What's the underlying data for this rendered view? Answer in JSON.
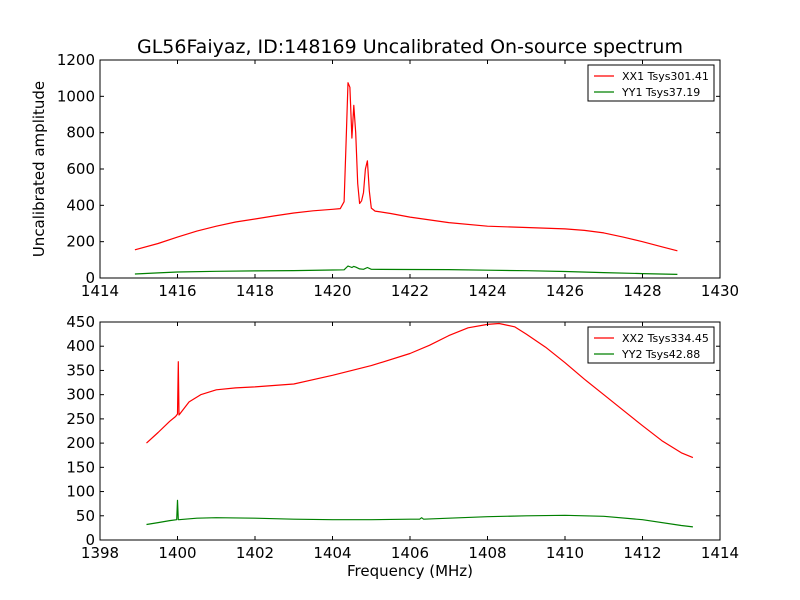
{
  "title": "GL56Faiyaz, ID:148169 Uncalibrated On-source spectrum",
  "colors": {
    "xx": "#ff0000",
    "yy": "#008000"
  },
  "chart_data": [
    {
      "type": "line",
      "ylabel": "Uncalibrated amplitude",
      "xlabel": "",
      "xlim": [
        1414,
        1430
      ],
      "ylim": [
        0,
        1200
      ],
      "xticks": [
        1414,
        1416,
        1418,
        1420,
        1422,
        1424,
        1426,
        1428,
        1430
      ],
      "yticks": [
        0,
        200,
        400,
        600,
        800,
        1000,
        1200
      ],
      "legend_position": "top-right",
      "series": [
        {
          "name": "XX1 Tsys301.41",
          "color": "#ff0000",
          "x": [
            1414.9,
            1415.5,
            1416,
            1416.5,
            1417,
            1417.5,
            1418,
            1418.5,
            1419,
            1419.5,
            1420,
            1420.2,
            1420.3,
            1420.35,
            1420.4,
            1420.45,
            1420.5,
            1420.55,
            1420.6,
            1420.65,
            1420.7,
            1420.75,
            1420.8,
            1420.85,
            1420.9,
            1420.95,
            1421,
            1421.1,
            1421.5,
            1422,
            1423,
            1424,
            1425,
            1426,
            1426.5,
            1427,
            1427.5,
            1428,
            1428.5,
            1428.9
          ],
          "y": [
            155,
            190,
            225,
            258,
            285,
            308,
            325,
            342,
            358,
            370,
            378,
            382,
            420,
            750,
            1075,
            1050,
            770,
            950,
            800,
            520,
            410,
            425,
            470,
            600,
            645,
            480,
            385,
            368,
            355,
            335,
            305,
            285,
            278,
            270,
            262,
            248,
            225,
            200,
            172,
            150
          ]
        },
        {
          "name": "YY1 Tsys37.19",
          "color": "#008000",
          "x": [
            1414.9,
            1415.5,
            1416,
            1417,
            1418,
            1419,
            1420,
            1420.3,
            1420.4,
            1420.5,
            1420.55,
            1420.6,
            1420.7,
            1420.8,
            1420.9,
            1421,
            1422,
            1423,
            1424,
            1425,
            1426,
            1427,
            1428,
            1428.9
          ],
          "y": [
            22,
            28,
            33,
            37,
            39,
            41,
            44,
            45,
            66,
            58,
            64,
            60,
            50,
            48,
            58,
            48,
            47,
            46,
            43,
            40,
            36,
            30,
            24,
            20
          ]
        }
      ]
    },
    {
      "type": "line",
      "ylabel": "",
      "xlabel": "Frequency (MHz)",
      "xlim": [
        1398,
        1414
      ],
      "ylim": [
        0,
        450
      ],
      "xticks": [
        1398,
        1400,
        1402,
        1404,
        1406,
        1408,
        1410,
        1412,
        1414
      ],
      "yticks": [
        0,
        50,
        100,
        150,
        200,
        250,
        300,
        350,
        400,
        450
      ],
      "legend_position": "top-right",
      "series": [
        {
          "name": "XX2 Tsys334.45",
          "color": "#ff0000",
          "x": [
            1399.2,
            1399.5,
            1399.8,
            1399.95,
            1400.0,
            1400.02,
            1400.04,
            1400.3,
            1400.6,
            1401.0,
            1401.5,
            1402,
            1403,
            1404,
            1405,
            1406,
            1406.5,
            1407,
            1407.5,
            1408,
            1408.3,
            1408.7,
            1409,
            1409.5,
            1410,
            1410.5,
            1411,
            1411.5,
            1412,
            1412.5,
            1413,
            1413.3
          ],
          "y": [
            200,
            222,
            245,
            255,
            260,
            368,
            258,
            285,
            300,
            310,
            314,
            316,
            322,
            340,
            360,
            385,
            402,
            422,
            438,
            445,
            447,
            440,
            425,
            398,
            366,
            332,
            300,
            268,
            236,
            205,
            180,
            170
          ]
        },
        {
          "name": "YY2 Tsys42.88",
          "color": "#008000",
          "x": [
            1399.2,
            1399.5,
            1399.8,
            1399.98,
            1400.0,
            1400.02,
            1400.04,
            1400.5,
            1401,
            1402,
            1403,
            1404,
            1405,
            1406,
            1406.25,
            1406.3,
            1406.35,
            1407,
            1408,
            1409,
            1410,
            1411,
            1412,
            1413,
            1413.3
          ],
          "y": [
            32,
            36,
            40,
            42,
            82,
            42,
            42,
            45,
            46,
            45,
            43,
            42,
            42,
            43,
            43,
            46,
            43,
            45,
            48,
            50,
            51,
            49,
            42,
            30,
            27
          ]
        }
      ]
    }
  ]
}
